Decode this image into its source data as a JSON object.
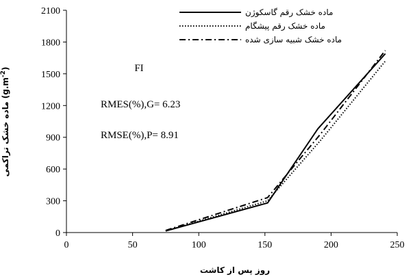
{
  "chart_data": {
    "type": "line",
    "xlabel": "روز پس از کاشت",
    "ylabel": "ماده خشک تراکمی (g.m-2)",
    "ylabel_main": "ماده خشک تراکمی",
    "ylabel_unit_prefix": "(g.m",
    "ylabel_unit_exp": "-2",
    "ylabel_unit_suffix": ")",
    "xlim": [
      0,
      250
    ],
    "ylim": [
      0,
      2100
    ],
    "xticks": [
      0,
      50,
      100,
      150,
      200,
      250
    ],
    "yticks": [
      0,
      300,
      600,
      900,
      1200,
      1500,
      1800,
      2100
    ],
    "legend_position": "top-right",
    "series": [
      {
        "name": "ماده خشک رقم گاسکوژن",
        "style": "solid",
        "x": [
          75,
          152,
          190,
          241
        ],
        "y": [
          15,
          280,
          980,
          1690
        ]
      },
      {
        "name": "ماده خشک رقم پیشگام",
        "style": "dotted",
        "x": [
          75,
          152,
          192,
          241
        ],
        "y": [
          15,
          300,
          870,
          1620
        ]
      },
      {
        "name": "ماده خشک شبیه سازی شده",
        "style": "dashdot",
        "x": [
          75,
          152,
          192,
          241
        ],
        "y": [
          20,
          330,
          930,
          1720
        ]
      }
    ],
    "annotations": [
      {
        "text": "FI"
      },
      {
        "text": "RMES(%),G= 6.23"
      },
      {
        "text": "RMSE(%),P= 8.91"
      }
    ]
  },
  "colors": {
    "line": "#000000",
    "axis": "#000000"
  }
}
